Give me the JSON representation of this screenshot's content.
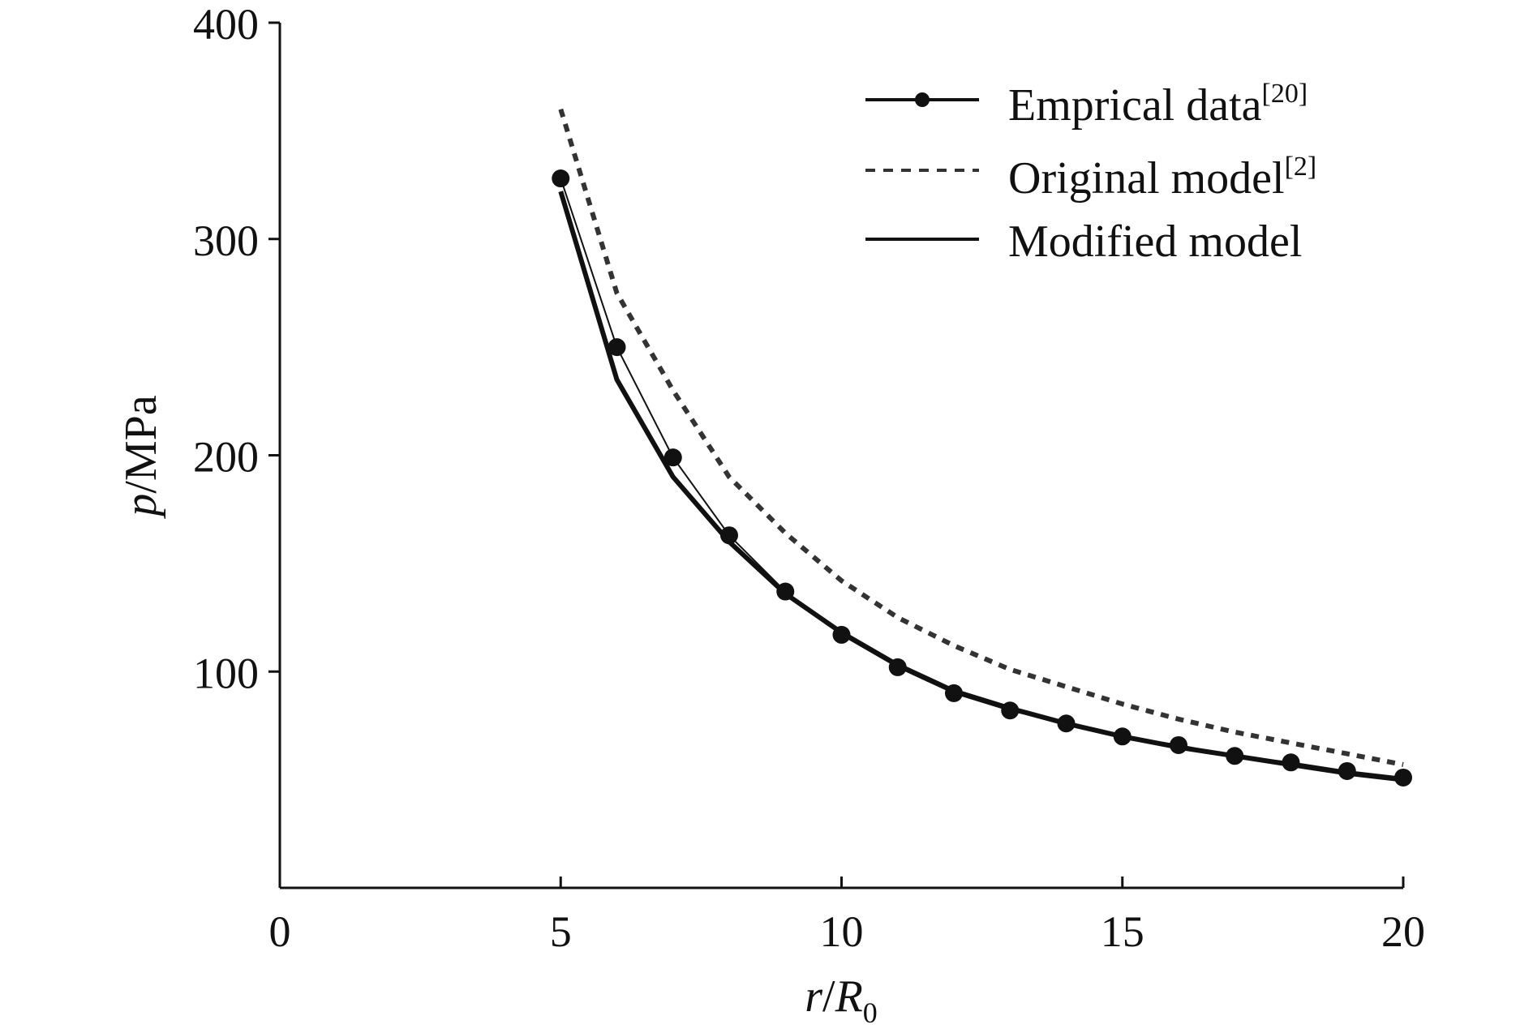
{
  "chart_data": {
    "type": "line",
    "xlabel": {
      "var": "r",
      "sep": "/",
      "sym": "R",
      "sub": "0"
    },
    "ylabel": {
      "var": "p",
      "unit": "/MPa"
    },
    "xlim": [
      0,
      20
    ],
    "ylim": [
      0,
      400
    ],
    "xticks": [
      0,
      5,
      10,
      15,
      20
    ],
    "yticks": [
      100,
      200,
      300,
      400
    ],
    "grid": false,
    "legend_position": "top-right",
    "series": [
      {
        "key": "empirical",
        "name": "Emprical data",
        "ref": "[20]",
        "style": "line-marker",
        "color": "#111111",
        "x": [
          5,
          6,
          7,
          8,
          9,
          10,
          11,
          12,
          13,
          14,
          15,
          16,
          17,
          18,
          19,
          20
        ],
        "y": [
          328,
          250,
          199,
          163,
          137,
          117,
          102,
          90,
          82,
          76,
          70,
          66,
          61,
          58,
          54,
          51
        ]
      },
      {
        "key": "original",
        "name": "Original model",
        "ref": "[2]",
        "style": "dotted",
        "color": "#333333",
        "x": [
          5,
          6,
          7,
          8,
          9,
          10,
          11,
          12,
          13,
          14,
          15,
          16,
          17,
          18,
          19,
          20
        ],
        "y": [
          360,
          275,
          230,
          190,
          164,
          142,
          125,
          112,
          101,
          93,
          85,
          78,
          72,
          67,
          62,
          57
        ]
      },
      {
        "key": "modified",
        "name": "Modified model",
        "ref": "",
        "style": "solid",
        "color": "#111111",
        "x": [
          5,
          6,
          7,
          8,
          9,
          10,
          11,
          12,
          13,
          14,
          15,
          16,
          17,
          18,
          19,
          20
        ],
        "y": [
          322,
          235,
          190,
          160,
          136,
          118,
          103,
          91,
          83,
          76,
          70,
          65,
          61,
          57,
          53,
          50
        ]
      }
    ]
  }
}
